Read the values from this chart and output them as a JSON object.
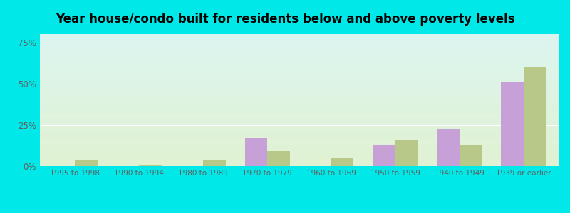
{
  "title": "Year house/condo built for residents below and above poverty levels",
  "categories": [
    "1995 to 1998",
    "1990 to 1994",
    "1980 to 1989",
    "1970 to 1979",
    "1960 to 1969",
    "1950 to 1959",
    "1940 to 1949",
    "1939 or earlier"
  ],
  "below_poverty": [
    0.0,
    0.0,
    0.0,
    17.0,
    0.0,
    13.0,
    23.0,
    51.0
  ],
  "above_poverty": [
    4.0,
    1.0,
    4.0,
    9.0,
    5.0,
    16.0,
    13.0,
    60.0
  ],
  "below_color": "#c8a0d8",
  "above_color": "#b8c888",
  "ylim": [
    0,
    80
  ],
  "yticks": [
    0,
    25,
    50,
    75
  ],
  "ytick_labels": [
    "0%",
    "25%",
    "50%",
    "75%"
  ],
  "outer_background": "#00e8e8",
  "bar_width": 0.35,
  "title_fontsize": 12,
  "tick_fontsize": 7.5
}
